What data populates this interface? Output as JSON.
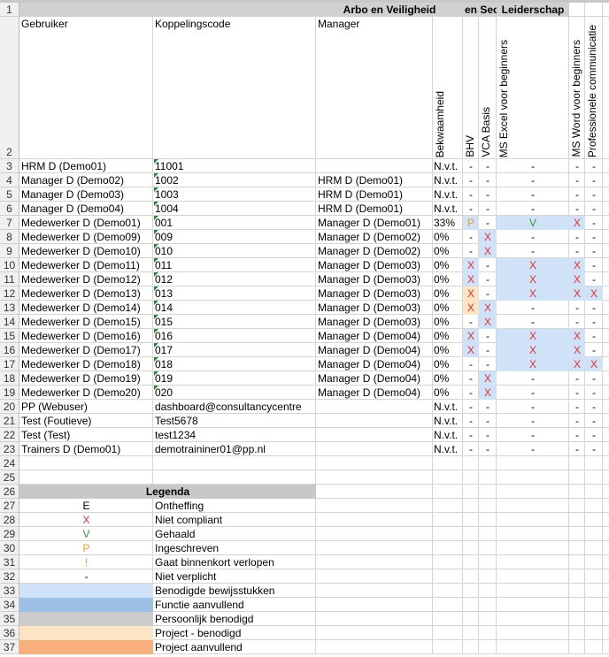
{
  "sheet": {
    "row_numbers": [
      1,
      2,
      3,
      4,
      5,
      6,
      7,
      8,
      9,
      10,
      11,
      12,
      13,
      14,
      15,
      16,
      17,
      18,
      19,
      20,
      21,
      22,
      23,
      24,
      25,
      26,
      27,
      28,
      29,
      30,
      31,
      32,
      33,
      34,
      35,
      36,
      37
    ],
    "groups": [
      "Arbo en Veiligheid",
      "en Sec",
      "Leiderschap"
    ],
    "columns": [
      "Gebruiker",
      "Koppelingscode",
      "Manager",
      "Bekwaamheid",
      "BHV",
      "VCA Basis",
      "MS Excel voor beginners",
      "MS Word voor beginners",
      "Professionele communicatie"
    ],
    "rows": [
      {
        "user": "HRM D (Demo01)",
        "code": "11001",
        "scores": [
          "N.v.t.",
          "-",
          "-",
          "-",
          "-",
          "-"
        ],
        "fills": [
          null,
          null,
          null,
          null,
          null,
          null
        ]
      },
      {
        "user": "Manager D (Demo02)",
        "code": "1002",
        "manager": "HRM D (Demo01)",
        "scores": [
          "N.v.t.",
          "-",
          "-",
          "-",
          "-",
          "-"
        ],
        "fills": [
          null,
          null,
          null,
          null,
          null,
          null
        ]
      },
      {
        "user": "Manager D (Demo03)",
        "code": "1003",
        "manager": "HRM D (Demo01)",
        "scores": [
          "N.v.t.",
          "-",
          "-",
          "-",
          "-",
          "-"
        ],
        "fills": [
          null,
          null,
          null,
          null,
          null,
          null
        ]
      },
      {
        "user": "Manager D (Demo04)",
        "code": "1004",
        "manager": "HRM D (Demo01)",
        "scores": [
          "N.v.t.",
          "-",
          "-",
          "-",
          "-",
          "-"
        ],
        "fills": [
          null,
          null,
          null,
          null,
          null,
          null
        ]
      },
      {
        "user": "Medewerker D (Demo01)",
        "code": "001",
        "manager": "Manager D (Demo01)",
        "scores": [
          "33%",
          "P",
          "-",
          "V",
          "X",
          "-"
        ],
        "fills": [
          null,
          0,
          null,
          0,
          0,
          null
        ]
      },
      {
        "user": "Medewerker D (Demo09)",
        "code": "009",
        "manager": "Manager D (Demo02)",
        "scores": [
          "0%",
          "-",
          "X",
          "-",
          "-",
          "-"
        ],
        "fills": [
          null,
          null,
          0,
          null,
          null,
          null
        ]
      },
      {
        "user": "Medewerker D (Demo10)",
        "code": "010",
        "manager": "Manager D (Demo02)",
        "scores": [
          "0%",
          "-",
          "X",
          "-",
          "-",
          "-"
        ],
        "fills": [
          null,
          null,
          0,
          null,
          null,
          null
        ]
      },
      {
        "user": "Medewerker D (Demo11)",
        "code": "011",
        "manager": "Manager D (Demo03)",
        "scores": [
          "0%",
          "X",
          "-",
          "X",
          "X",
          "-"
        ],
        "fills": [
          null,
          0,
          null,
          0,
          0,
          null
        ]
      },
      {
        "user": "Medewerker D (Demo12)",
        "code": "012",
        "manager": "Manager D (Demo03)",
        "scores": [
          "0%",
          "X",
          "-",
          "X",
          "X",
          "-"
        ],
        "fills": [
          null,
          0,
          null,
          0,
          0,
          null
        ]
      },
      {
        "user": "Medewerker D (Demo13)",
        "code": "013",
        "manager": "Manager D (Demo03)",
        "scores": [
          "0%",
          "X",
          "-",
          "X",
          "X",
          "X"
        ],
        "fills": [
          null,
          3,
          null,
          0,
          0,
          0
        ]
      },
      {
        "user": "Medewerker D (Demo14)",
        "code": "014",
        "manager": "Manager D (Demo03)",
        "scores": [
          "0%",
          "X",
          "X",
          "-",
          "-",
          "-"
        ],
        "fills": [
          null,
          3,
          0,
          null,
          null,
          null
        ]
      },
      {
        "user": "Medewerker D (Demo15)",
        "code": "015",
        "manager": "Manager D (Demo03)",
        "scores": [
          "0%",
          "-",
          "X",
          "-",
          "-",
          "-"
        ],
        "fills": [
          null,
          null,
          0,
          null,
          null,
          null
        ]
      },
      {
        "user": "Medewerker D (Demo16)",
        "code": "016",
        "manager": "Manager D (Demo04)",
        "scores": [
          "0%",
          "X",
          "-",
          "X",
          "X",
          "-"
        ],
        "fills": [
          null,
          0,
          null,
          0,
          0,
          null
        ]
      },
      {
        "user": "Medewerker D (Demo17)",
        "code": "017",
        "manager": "Manager D (Demo04)",
        "scores": [
          "0%",
          "X",
          "-",
          "X",
          "X",
          "-"
        ],
        "fills": [
          null,
          0,
          null,
          0,
          0,
          null
        ]
      },
      {
        "user": "Medewerker D (Demo18)",
        "code": "018",
        "manager": "Manager D (Demo04)",
        "scores": [
          "0%",
          "-",
          "-",
          "X",
          "X",
          "X"
        ],
        "fills": [
          null,
          null,
          null,
          0,
          0,
          0
        ]
      },
      {
        "user": "Medewerker D (Demo19)",
        "code": "019",
        "manager": "Manager D (Demo04)",
        "scores": [
          "0%",
          "-",
          "X",
          "-",
          "-",
          "-"
        ],
        "fills": [
          null,
          null,
          0,
          null,
          null,
          null
        ]
      },
      {
        "user": "Medewerker D (Demo20)",
        "code": "020",
        "manager": "Manager D (Demo04)",
        "scores": [
          "0%",
          "-",
          "X",
          "-",
          "-",
          "-"
        ],
        "fills": [
          null,
          null,
          0,
          null,
          null,
          null
        ]
      },
      {
        "user": "PP (Webuser)",
        "code": "dashboard@consultancycentre",
        "scores": [
          "N.v.t.",
          "-",
          "-",
          "-",
          "-",
          "-"
        ],
        "fills": [
          null,
          null,
          null,
          null,
          null,
          null
        ]
      },
      {
        "user": "Test (Foutieve)",
        "code": "Test5678",
        "scores": [
          "N.v.t.",
          "-",
          "-",
          "-",
          "-",
          "-"
        ],
        "fills": [
          null,
          null,
          null,
          null,
          null,
          null
        ]
      },
      {
        "user": "Test (Test)",
        "code": "test1234",
        "scores": [
          "N.v.t.",
          "-",
          "-",
          "-",
          "-",
          "-"
        ],
        "fills": [
          null,
          null,
          null,
          null,
          null,
          null
        ]
      },
      {
        "user": "Trainers D (Demo01)",
        "code": "demotraininer01@pp.nl",
        "scores": [
          "N.v.t.",
          "-",
          "-",
          "-",
          "-",
          "-"
        ],
        "fills": [
          null,
          null,
          null,
          null,
          null,
          null
        ]
      }
    ],
    "legend": {
      "title": "Legenda",
      "symbols": [
        {
          "symbol": "E",
          "label": "Ontheffing",
          "color": "#000000"
        },
        {
          "symbol": "X",
          "label": "Niet compliant",
          "color": "#e03030"
        },
        {
          "symbol": "V",
          "label": "Gehaald",
          "color": "#2e9a2e"
        },
        {
          "symbol": "P",
          "label": "Ingeschreven",
          "color": "#e8a020"
        },
        {
          "symbol": "!",
          "label": "Gaat binnenkort verlopen",
          "color": "#e8a020"
        },
        {
          "symbol": "-",
          "label": "Niet verplicht",
          "color": "#000000"
        }
      ],
      "fills": [
        {
          "label": "Benodigde bewijsstukken",
          "color": "#cfe2f7"
        },
        {
          "label": "Functie aanvullend",
          "color": "#9dc0e6"
        },
        {
          "label": "Persoonlijk benodigd",
          "color": "#cccccc"
        },
        {
          "label": "Project - benodigd",
          "color": "#fde4c4"
        },
        {
          "label": "Project aanvullend",
          "color": "#f7b07c"
        }
      ]
    }
  }
}
